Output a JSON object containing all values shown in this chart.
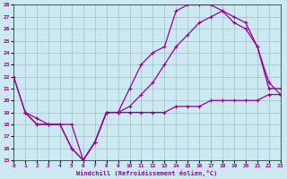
{
  "background_color": "#cce8f0",
  "grid_color": "#9dbfcc",
  "line_color": "#990099",
  "xlabel": "Windchill (Refroidissement éolien,°C)",
  "xlim": [
    0,
    23
  ],
  "ylim": [
    15,
    28
  ],
  "xticks": [
    0,
    1,
    2,
    3,
    4,
    5,
    6,
    7,
    8,
    9,
    10,
    11,
    12,
    13,
    14,
    15,
    16,
    17,
    18,
    19,
    20,
    21,
    22,
    23
  ],
  "yticks": [
    15,
    16,
    17,
    18,
    19,
    20,
    21,
    22,
    23,
    24,
    25,
    26,
    27,
    28
  ],
  "curve1_x": [
    0,
    1,
    2,
    3,
    4,
    5,
    6,
    7,
    8,
    9,
    10,
    11,
    12,
    13,
    14,
    15,
    16,
    17,
    18,
    19,
    20,
    21,
    22,
    23
  ],
  "curve1_y": [
    22,
    19,
    18,
    18,
    18,
    16,
    15,
    16.5,
    19,
    19,
    21,
    23,
    24,
    24.5,
    27.5,
    28,
    28,
    28,
    27.5,
    27,
    26.5,
    24.5,
    21.5,
    20.5
  ],
  "curve2_x": [
    0,
    1,
    2,
    3,
    4,
    5,
    6,
    7,
    8,
    9,
    10,
    11,
    12,
    13,
    14,
    15,
    16,
    17,
    18,
    19,
    20,
    21,
    22,
    23
  ],
  "curve2_y": [
    22,
    19,
    18,
    18,
    18,
    16,
    15,
    16.5,
    19,
    19,
    19.5,
    20.5,
    21.5,
    23,
    24.5,
    25.5,
    26.5,
    27,
    27.5,
    26.5,
    26,
    24.5,
    21,
    21
  ],
  "curve3_x": [
    1,
    2,
    3,
    4,
    5,
    6,
    7,
    8,
    9,
    10,
    11,
    12,
    13,
    14,
    15,
    16,
    17,
    18,
    19,
    20,
    21,
    22,
    23
  ],
  "curve3_y": [
    19,
    18.5,
    18,
    18,
    18,
    15,
    16.5,
    19,
    19,
    19,
    19,
    19,
    19,
    19.5,
    19.5,
    19.5,
    20,
    20,
    20,
    20,
    20,
    20.5,
    20.5
  ]
}
